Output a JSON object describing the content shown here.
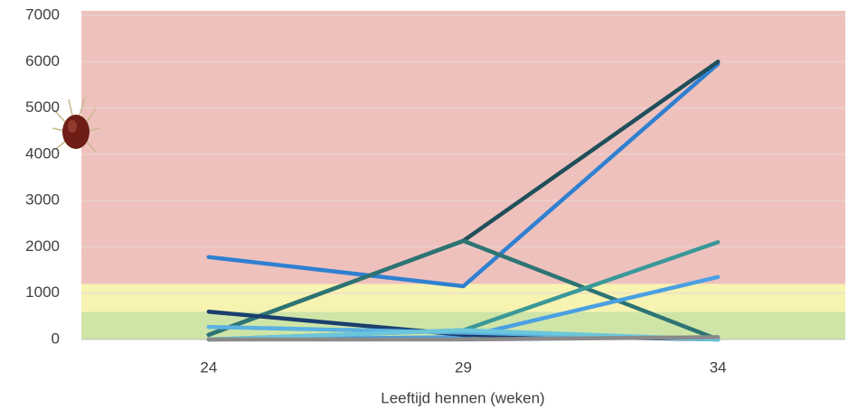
{
  "chart_data": {
    "type": "line",
    "x_label": "Leeftijd hennen (weken)",
    "categories": [
      "24",
      "29",
      "34"
    ],
    "ylim": [
      0,
      7000
    ],
    "yticks": [
      0,
      1000,
      2000,
      3000,
      4000,
      5000,
      6000,
      7000
    ],
    "grid": true,
    "bands": [
      {
        "from": 0,
        "to": 600,
        "color": "#cfe5a8"
      },
      {
        "from": 600,
        "to": 1200,
        "color": "#f7f3b0"
      },
      {
        "from": 1200,
        "to": 7000,
        "color": "#efc1bd"
      }
    ],
    "series": [
      {
        "color": "#2f80d0",
        "values": [
          1780,
          1150,
          5950
        ]
      },
      {
        "color": "#1f4f5a",
        "values": [
          100,
          2130,
          6000
        ]
      },
      {
        "color": "#2d7474",
        "values": [
          100,
          2130,
          0
        ]
      },
      {
        "color": "#3a9898",
        "values": [
          0,
          200,
          2100
        ]
      },
      {
        "color": "#4aa0e2",
        "values": [
          0,
          50,
          1350
        ]
      },
      {
        "color": "#1a3f6e",
        "values": [
          600,
          100,
          0
        ]
      },
      {
        "color": "#5bb2e2",
        "values": [
          270,
          150,
          0
        ]
      },
      {
        "color": "#6cc6da",
        "values": [
          0,
          200,
          0
        ]
      },
      {
        "color": "#8a8a8a",
        "values": [
          0,
          0,
          50
        ]
      }
    ]
  }
}
